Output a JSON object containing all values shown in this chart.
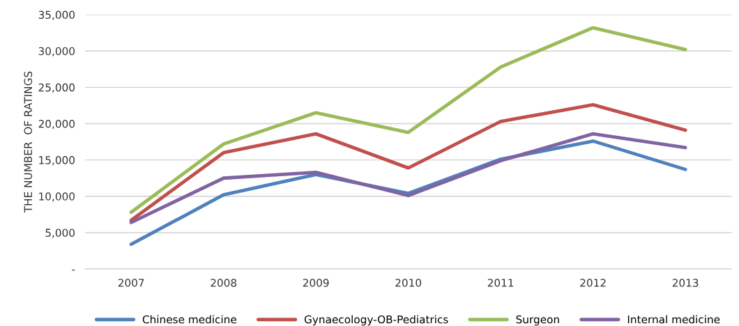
{
  "chart_data": {
    "type": "line",
    "ylabel": "THE NUMBER  OF RATINGS",
    "categories": [
      "2007",
      "2008",
      "2009",
      "2010",
      "2011",
      "2012",
      "2013"
    ],
    "series": [
      {
        "name": "Chinese medicine",
        "color": "#4f81bd",
        "values": [
          3400,
          10200,
          13000,
          10400,
          15100,
          17600,
          13700
        ]
      },
      {
        "name": "Gynaecology-OB-Pediatrics",
        "color": "#c0504d",
        "values": [
          6700,
          16000,
          18600,
          13900,
          20300,
          22600,
          19100
        ]
      },
      {
        "name": "Surgeon",
        "color": "#9bbb59",
        "values": [
          7800,
          17200,
          21500,
          18800,
          27800,
          33200,
          30200
        ]
      },
      {
        "name": "Internal medicine",
        "color": "#8064a2",
        "values": [
          6400,
          12500,
          13300,
          10100,
          14900,
          18600,
          16700
        ]
      }
    ],
    "ylim": [
      0,
      35000
    ],
    "yticks": [
      {
        "value": 0,
        "label": "-"
      },
      {
        "value": 5000,
        "label": "5,000"
      },
      {
        "value": 10000,
        "label": "10,000"
      },
      {
        "value": 15000,
        "label": "15,000"
      },
      {
        "value": 20000,
        "label": "20,000"
      },
      {
        "value": 25000,
        "label": "25,000"
      },
      {
        "value": 30000,
        "label": "30,000"
      },
      {
        "value": 35000,
        "label": "35,000"
      }
    ],
    "grid": "y",
    "legend": "bottom",
    "marker": "none",
    "line_style": "solid"
  }
}
